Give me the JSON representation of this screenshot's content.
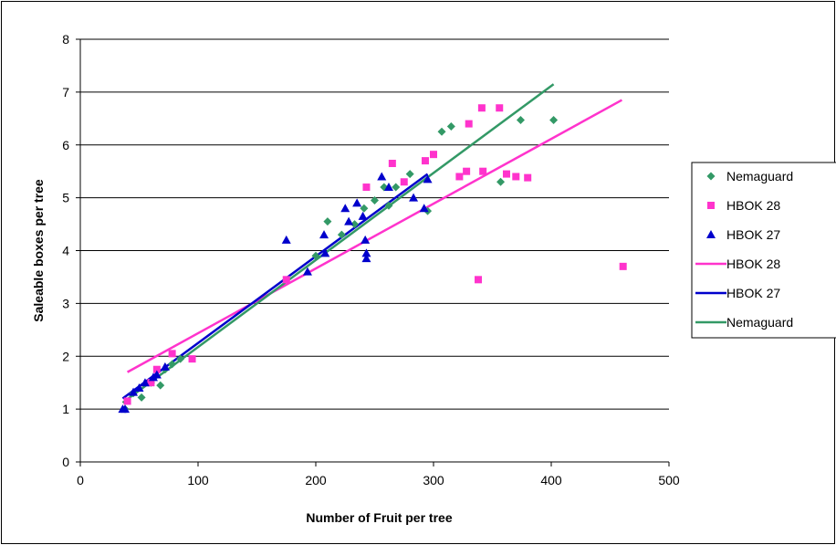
{
  "chart_data": {
    "type": "scatter",
    "xlabel": "Number of Fruit per tree",
    "ylabel": "Saleable boxes per tree",
    "xlim": [
      0,
      500
    ],
    "ylim": [
      0,
      8
    ],
    "xticks": [
      0,
      100,
      200,
      300,
      400,
      500
    ],
    "yticks": [
      0,
      1,
      2,
      3,
      4,
      5,
      6,
      7,
      8
    ],
    "grid": "horizontal",
    "legend_position": "right",
    "series": [
      {
        "name": "Nemaguard",
        "kind": "scatter",
        "marker": "diamond",
        "color": "#339966",
        "points": [
          [
            38,
            1.0
          ],
          [
            45,
            1.3
          ],
          [
            52,
            1.22
          ],
          [
            60,
            1.5
          ],
          [
            68,
            1.45
          ],
          [
            72,
            1.75
          ],
          [
            78,
            1.85
          ],
          [
            85,
            1.95
          ],
          [
            200,
            3.9
          ],
          [
            210,
            4.55
          ],
          [
            222,
            4.3
          ],
          [
            233,
            4.5
          ],
          [
            241,
            4.8
          ],
          [
            250,
            4.95
          ],
          [
            258,
            5.2
          ],
          [
            262,
            4.85
          ],
          [
            268,
            5.2
          ],
          [
            280,
            5.45
          ],
          [
            295,
            4.75
          ],
          [
            307,
            6.25
          ],
          [
            315,
            6.35
          ],
          [
            357,
            5.3
          ],
          [
            374,
            6.47
          ],
          [
            402,
            6.47
          ]
        ]
      },
      {
        "name": "HBOK 28",
        "kind": "scatter",
        "marker": "square",
        "color": "#ff33cc",
        "points": [
          [
            40,
            1.15
          ],
          [
            60,
            1.5
          ],
          [
            65,
            1.75
          ],
          [
            78,
            2.05
          ],
          [
            95,
            1.95
          ],
          [
            175,
            3.45
          ],
          [
            243,
            5.2
          ],
          [
            265,
            5.65
          ],
          [
            275,
            5.3
          ],
          [
            293,
            5.7
          ],
          [
            300,
            5.82
          ],
          [
            322,
            5.4
          ],
          [
            328,
            5.5
          ],
          [
            330,
            6.4
          ],
          [
            338,
            3.45
          ],
          [
            341,
            6.7
          ],
          [
            342,
            5.5
          ],
          [
            356,
            6.7
          ],
          [
            362,
            5.45
          ],
          [
            370,
            5.4
          ],
          [
            380,
            5.38
          ],
          [
            461,
            3.7
          ]
        ]
      },
      {
        "name": "HBOK 27",
        "kind": "scatter",
        "marker": "triangle",
        "color": "#0000cc",
        "points": [
          [
            36,
            1.0
          ],
          [
            38,
            1.0
          ],
          [
            45,
            1.32
          ],
          [
            50,
            1.4
          ],
          [
            55,
            1.5
          ],
          [
            62,
            1.6
          ],
          [
            65,
            1.65
          ],
          [
            72,
            1.8
          ],
          [
            175,
            4.2
          ],
          [
            193,
            3.6
          ],
          [
            207,
            4.3
          ],
          [
            208,
            3.95
          ],
          [
            225,
            4.8
          ],
          [
            228,
            4.55
          ],
          [
            235,
            4.9
          ],
          [
            240,
            4.65
          ],
          [
            242,
            4.2
          ],
          [
            243,
            3.95
          ],
          [
            243,
            3.85
          ],
          [
            256,
            5.4
          ],
          [
            262,
            5.2
          ],
          [
            283,
            5.0
          ],
          [
            292,
            4.8
          ],
          [
            295,
            5.35
          ]
        ]
      },
      {
        "name": "HBOK 28",
        "kind": "line",
        "color": "#ff33cc",
        "points": [
          [
            40,
            1.7
          ],
          [
            460,
            6.85
          ]
        ]
      },
      {
        "name": "HBOK 27",
        "kind": "line",
        "color": "#0000cc",
        "points": [
          [
            36,
            1.2
          ],
          [
            295,
            5.45
          ]
        ]
      },
      {
        "name": "Nemaguard",
        "kind": "line",
        "color": "#339966",
        "points": [
          [
            36,
            1.12
          ],
          [
            402,
            7.15
          ]
        ]
      }
    ]
  }
}
